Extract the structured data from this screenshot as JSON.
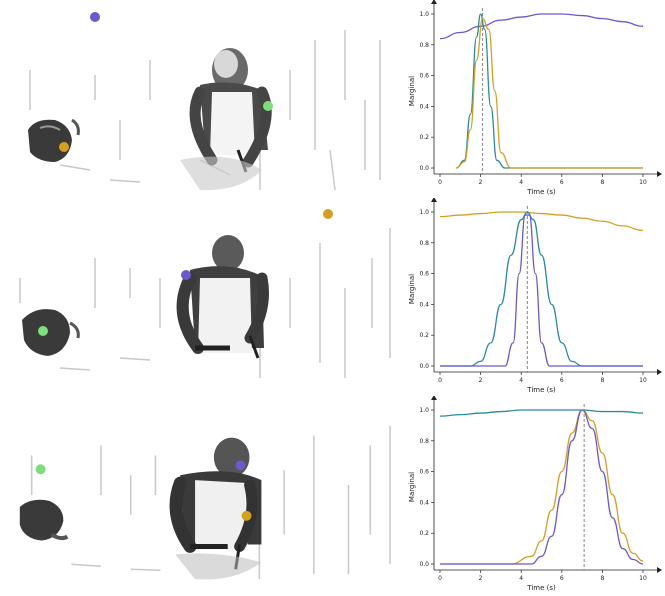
{
  "colors": {
    "purple": "#6a5acd",
    "teal": "#2a8c9c",
    "gold": "#d4a020",
    "green": "#7be07b",
    "axis": "#222222",
    "guide": "#777777"
  },
  "panels": [
    {
      "chart_data": {
        "type": "line",
        "xlabel": "Time (s)",
        "ylabel": "Marginal",
        "xlim": [
          0,
          10
        ],
        "ylim": [
          0,
          1
        ],
        "xticks": [
          "0",
          "2",
          "4",
          "6",
          "8",
          "10"
        ],
        "yticks": [
          "0.0",
          "0.2",
          "0.4",
          "0.6",
          "0.8",
          "1.0"
        ],
        "vline": 2.1,
        "series": [
          {
            "color": "purple",
            "x": [
              0,
              1,
              2,
              3,
              4,
              5,
              6,
              7,
              8,
              9,
              10
            ],
            "y": [
              0.84,
              0.88,
              0.92,
              0.96,
              0.98,
              1.0,
              1.0,
              0.99,
              0.97,
              0.95,
              0.92
            ]
          },
          {
            "color": "teal",
            "x": [
              0.8,
              1.2,
              1.5,
              1.8,
              2.0,
              2.2,
              2.5,
              2.8,
              3.2,
              10
            ],
            "y": [
              0.0,
              0.05,
              0.35,
              0.85,
              1.0,
              0.9,
              0.4,
              0.05,
              0.0,
              0.0
            ]
          },
          {
            "color": "gold",
            "x": [
              0.8,
              1.2,
              1.5,
              1.8,
              2.1,
              2.4,
              2.7,
              3.0,
              3.5,
              10
            ],
            "y": [
              0.0,
              0.04,
              0.25,
              0.7,
              0.97,
              0.9,
              0.5,
              0.1,
              0.0,
              0.0
            ]
          }
        ]
      },
      "markers": [
        {
          "color": "purple",
          "label": "keypoint-1"
        },
        {
          "color": "green",
          "label": "keypoint-2"
        },
        {
          "color": "gold",
          "label": "keypoint-3"
        }
      ]
    },
    {
      "chart_data": {
        "type": "line",
        "xlabel": "Time (s)",
        "ylabel": "Marginal",
        "xlim": [
          0,
          10
        ],
        "ylim": [
          0,
          1
        ],
        "xticks": [
          "0",
          "2",
          "4",
          "6",
          "8",
          "10"
        ],
        "yticks": [
          "0.0",
          "0.2",
          "0.4",
          "0.6",
          "0.8",
          "1.0"
        ],
        "vline": 4.3,
        "series": [
          {
            "color": "gold",
            "x": [
              0,
              1,
              2,
              3,
              4,
              5,
              6,
              7,
              8,
              9,
              10
            ],
            "y": [
              0.97,
              0.98,
              0.99,
              1.0,
              1.0,
              0.99,
              0.98,
              0.96,
              0.94,
              0.91,
              0.88
            ]
          },
          {
            "color": "teal",
            "x": [
              0,
              1.5,
              2.0,
              2.5,
              3.0,
              3.5,
              4.0,
              4.3,
              4.6,
              5.0,
              5.5,
              6.0,
              6.5,
              7.0,
              10
            ],
            "y": [
              0.0,
              0.0,
              0.03,
              0.15,
              0.4,
              0.72,
              0.95,
              1.0,
              0.95,
              0.72,
              0.4,
              0.15,
              0.03,
              0.0,
              0.0
            ]
          },
          {
            "color": "purple",
            "x": [
              0,
              3.2,
              3.6,
              3.9,
              4.2,
              4.4,
              4.7,
              5.0,
              5.4,
              10
            ],
            "y": [
              0.0,
              0.0,
              0.15,
              0.6,
              0.98,
              0.98,
              0.6,
              0.15,
              0.0,
              0.0
            ]
          }
        ]
      },
      "markers": [
        {
          "color": "gold",
          "label": "keypoint-1"
        },
        {
          "color": "purple",
          "label": "keypoint-2"
        },
        {
          "color": "green",
          "label": "keypoint-3"
        }
      ]
    },
    {
      "chart_data": {
        "type": "line",
        "xlabel": "Time (s)",
        "ylabel": "Marginal",
        "xlim": [
          0,
          10
        ],
        "ylim": [
          0,
          1
        ],
        "xticks": [
          "0",
          "2",
          "4",
          "6",
          "8",
          "10"
        ],
        "yticks": [
          "0.0",
          "0.2",
          "0.4",
          "0.6",
          "0.8",
          "1.0"
        ],
        "vline": 7.1,
        "series": [
          {
            "color": "teal",
            "x": [
              0,
              1,
              2,
              3,
              4,
              5,
              6,
              7,
              8,
              9,
              10
            ],
            "y": [
              0.96,
              0.97,
              0.98,
              0.99,
              1.0,
              1.0,
              1.0,
              1.0,
              0.99,
              0.99,
              0.98
            ]
          },
          {
            "color": "gold",
            "x": [
              0,
              3.5,
              4.5,
              5.0,
              5.5,
              6.0,
              6.5,
              7.0,
              7.5,
              8.0,
              8.5,
              9.0,
              9.5,
              10
            ],
            "y": [
              0.0,
              0.0,
              0.05,
              0.15,
              0.35,
              0.6,
              0.85,
              1.0,
              0.93,
              0.72,
              0.45,
              0.2,
              0.07,
              0.02
            ]
          },
          {
            "color": "purple",
            "x": [
              0,
              4.5,
              5.0,
              5.5,
              6.0,
              6.5,
              7.0,
              7.5,
              8.0,
              8.5,
              9.0,
              9.5,
              10
            ],
            "y": [
              0.0,
              0.0,
              0.05,
              0.18,
              0.45,
              0.8,
              1.0,
              0.88,
              0.6,
              0.3,
              0.1,
              0.03,
              0.0
            ]
          }
        ]
      },
      "markers": [
        {
          "color": "green",
          "label": "keypoint-1"
        },
        {
          "color": "purple",
          "label": "keypoint-2"
        },
        {
          "color": "gold",
          "label": "keypoint-3"
        }
      ]
    }
  ]
}
